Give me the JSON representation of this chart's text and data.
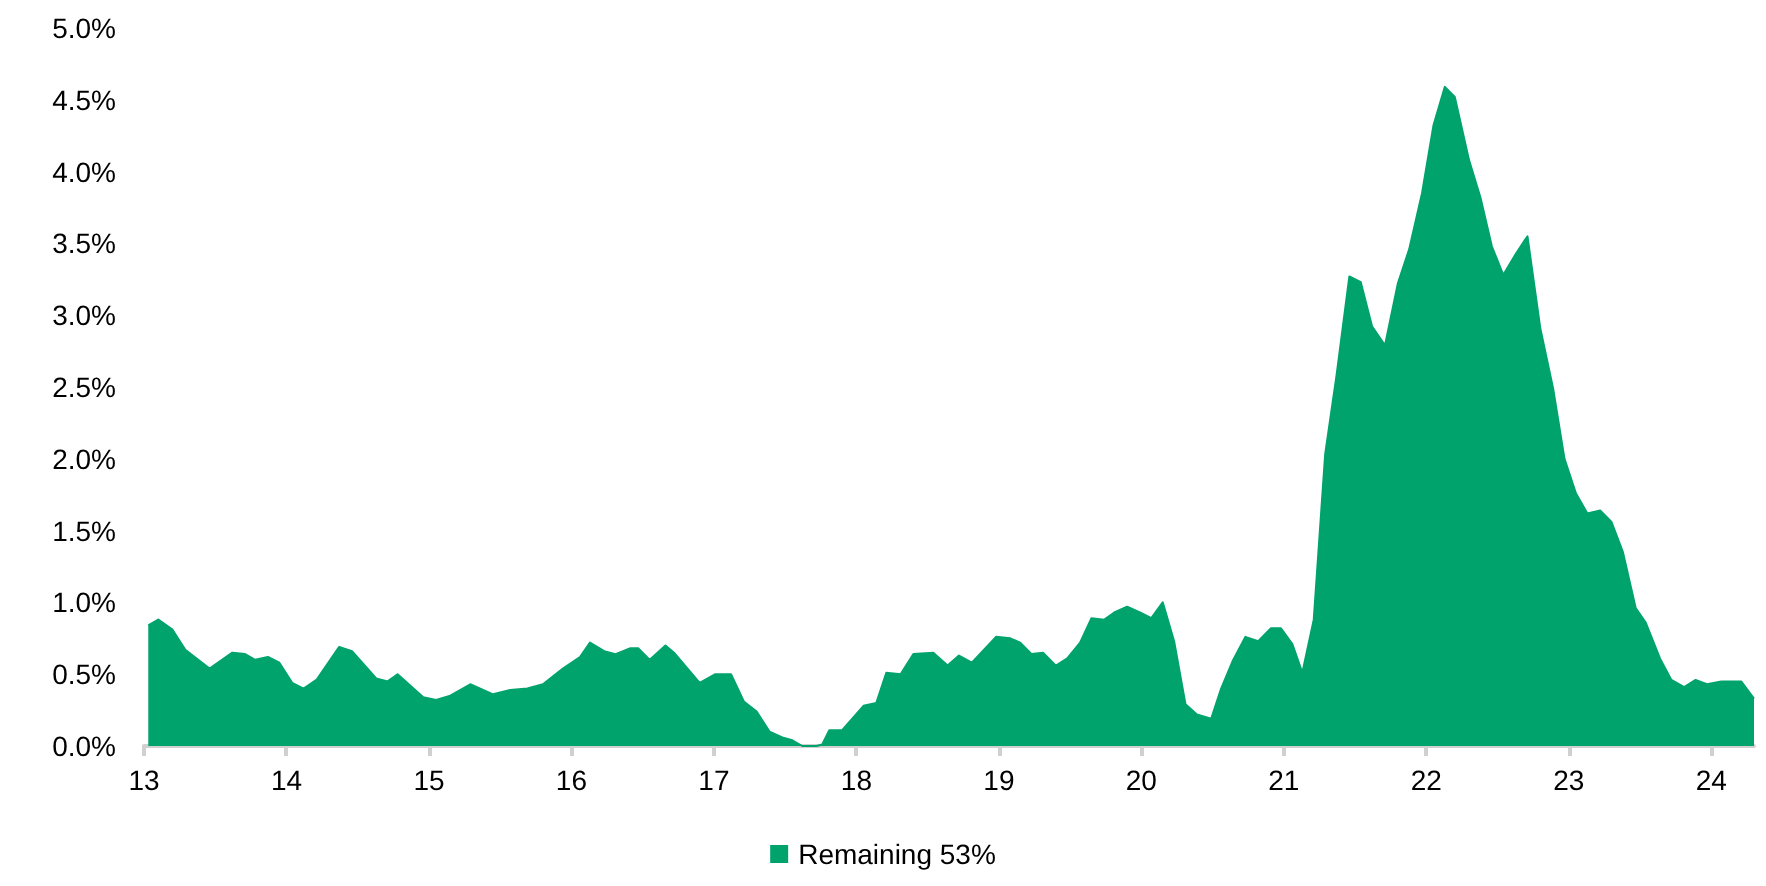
{
  "chart_data": {
    "type": "area",
    "marker": "none",
    "grid": false,
    "legend": "bottom",
    "xlim": [
      13,
      24.3
    ],
    "xticks": [
      13,
      14,
      15,
      16,
      17,
      18,
      19,
      20,
      21,
      22,
      23,
      24
    ],
    "ylim": [
      0,
      5
    ],
    "yticks": [
      {
        "value": 0,
        "label": "0.0%"
      },
      {
        "value": 0.5,
        "label": "0.5%"
      },
      {
        "value": 1,
        "label": "1.0%"
      },
      {
        "value": 1.5,
        "label": "1.5%"
      },
      {
        "value": 2,
        "label": "2.0%"
      },
      {
        "value": 2.5,
        "label": "2.5%"
      },
      {
        "value": 3,
        "label": "3.0%"
      },
      {
        "value": 3.5,
        "label": "3.5%"
      },
      {
        "value": 4,
        "label": "4.0%"
      },
      {
        "value": 4.5,
        "label": "4.5%"
      },
      {
        "value": 5,
        "label": "5.0%"
      }
    ],
    "series": [
      {
        "name": "Remaining 53%",
        "color": "#00a36c",
        "x": [
          13.03,
          13.1,
          13.2,
          13.29,
          13.46,
          13.62,
          13.71,
          13.78,
          13.87,
          13.95,
          14.04,
          14.12,
          14.21,
          14.37,
          14.46,
          14.63,
          14.71,
          14.78,
          14.96,
          15.05,
          15.15,
          15.29,
          15.45,
          15.57,
          15.69,
          15.8,
          15.94,
          16.06,
          16.13,
          16.23,
          16.31,
          16.41,
          16.47,
          16.55,
          16.66,
          16.72,
          16.9,
          17.01,
          17.12,
          17.21,
          17.3,
          17.39,
          17.48,
          17.55,
          17.62,
          17.72,
          17.76,
          17.81,
          17.9,
          18.05,
          18.14,
          18.21,
          18.31,
          18.4,
          18.54,
          18.64,
          18.72,
          18.81,
          18.98,
          19.08,
          19.15,
          19.23,
          19.31,
          19.4,
          19.48,
          19.57,
          19.65,
          19.74,
          19.81,
          19.9,
          19.99,
          20.07,
          20.15,
          20.23,
          20.31,
          20.39,
          20.49,
          20.56,
          20.64,
          20.73,
          20.82,
          20.91,
          20.98,
          21.06,
          21.13,
          21.21,
          21.29,
          21.37,
          21.46,
          21.54,
          21.62,
          21.71,
          21.8,
          21.88,
          21.97,
          22.05,
          22.13,
          22.2,
          22.3,
          22.38,
          22.46,
          22.54,
          22.63,
          22.71,
          22.8,
          22.89,
          22.97,
          23.05,
          23.13,
          23.22,
          23.3,
          23.38,
          23.47,
          23.54,
          23.64,
          23.72,
          23.81,
          23.89,
          23.97,
          24.07,
          24.21,
          24.3
        ],
        "values": [
          0.84,
          0.88,
          0.81,
          0.67,
          0.54,
          0.65,
          0.64,
          0.6,
          0.62,
          0.58,
          0.44,
          0.4,
          0.46,
          0.69,
          0.66,
          0.47,
          0.45,
          0.5,
          0.34,
          0.32,
          0.35,
          0.43,
          0.36,
          0.39,
          0.4,
          0.43,
          0.54,
          0.62,
          0.72,
          0.66,
          0.64,
          0.68,
          0.68,
          0.6,
          0.7,
          0.65,
          0.44,
          0.5,
          0.5,
          0.31,
          0.24,
          0.1,
          0.06,
          0.04,
          0,
          0,
          0.01,
          0.11,
          0.11,
          0.28,
          0.3,
          0.51,
          0.5,
          0.64,
          0.65,
          0.56,
          0.63,
          0.58,
          0.76,
          0.75,
          0.72,
          0.64,
          0.65,
          0.56,
          0.61,
          0.72,
          0.89,
          0.88,
          0.93,
          0.97,
          0.93,
          0.89,
          1.0,
          0.73,
          0.29,
          0.22,
          0.19,
          0.4,
          0.59,
          0.76,
          0.73,
          0.82,
          0.82,
          0.71,
          0.51,
          0.88,
          2.03,
          2.58,
          3.27,
          3.23,
          2.92,
          2.79,
          3.22,
          3.46,
          3.85,
          4.32,
          4.59,
          4.52,
          4.08,
          3.82,
          3.48,
          3.28,
          3.43,
          3.55,
          2.91,
          2.49,
          2.0,
          1.76,
          1.62,
          1.64,
          1.56,
          1.35,
          0.96,
          0.86,
          0.61,
          0.46,
          0.41,
          0.46,
          0.43,
          0.45,
          0.45,
          0.33
        ]
      }
    ]
  }
}
